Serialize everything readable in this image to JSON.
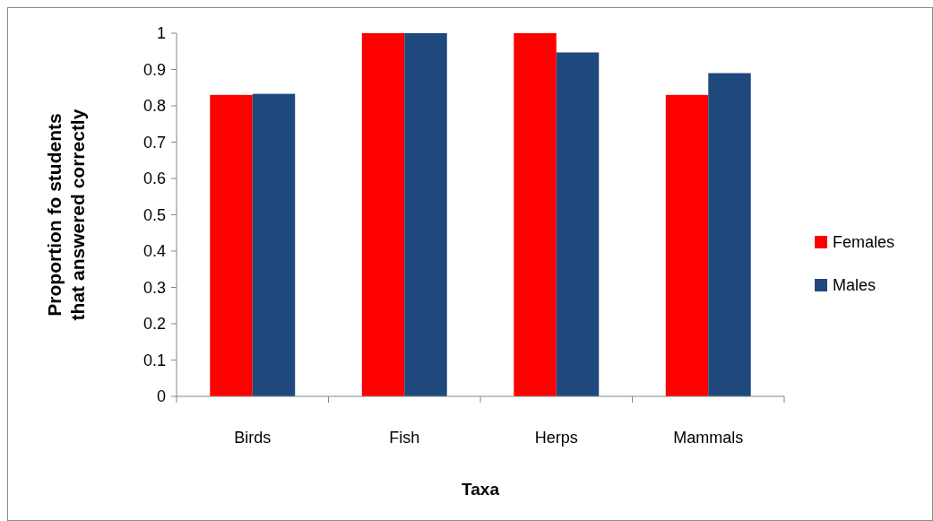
{
  "chart_data": {
    "type": "bar",
    "xlabel": "Taxa",
    "ylabel": "Proportion fo students that answered correctly",
    "categories": [
      "Birds",
      "Fish",
      "Herps",
      "Mammals"
    ],
    "series": [
      {
        "name": "Females",
        "color": "#ff0000",
        "values": [
          0.83,
          1,
          1,
          0.83
        ]
      },
      {
        "name": "Males",
        "color": "#1f497d",
        "values": [
          0.833,
          1,
          0.947,
          0.89
        ]
      }
    ],
    "ylim": [
      0,
      1
    ],
    "yticks": [
      0,
      0.1,
      0.2,
      0.3,
      0.4,
      0.5,
      0.6,
      0.7,
      0.8,
      0.9,
      1
    ],
    "grid": false,
    "legend": "right"
  }
}
